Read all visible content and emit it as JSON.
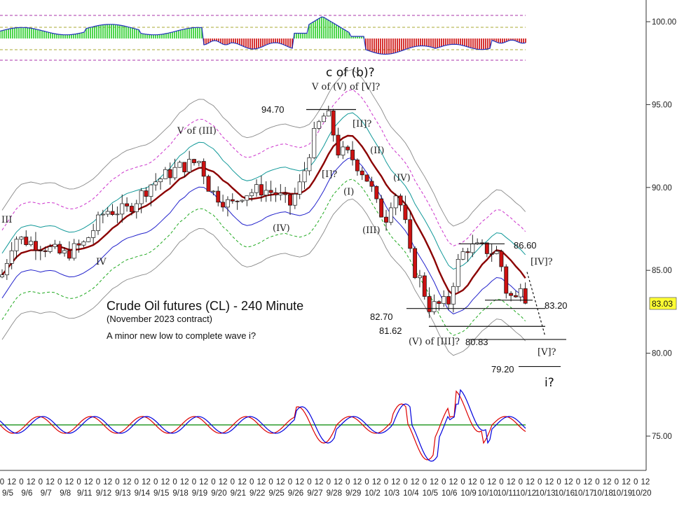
{
  "chart_data": {
    "type": "candlestick",
    "title": "Crude Oil futures (CL) - 240 Minute",
    "subtitle": "(November 2023 contract)",
    "note": "A minor new low to complete wave i?",
    "ylim": [
      73,
      101.5
    ],
    "y_ticks": [
      "100.00",
      "95.00",
      "90.00",
      "85.00",
      "80.00",
      "75.00"
    ],
    "last_price": "83.03",
    "x_row1": [
      "0",
      "12",
      "0",
      "12",
      "0",
      "12",
      "0",
      "12",
      "0",
      "12",
      "0",
      "12",
      "0",
      "12",
      "0",
      "12",
      "0",
      "12",
      "0",
      "12",
      "0",
      "12",
      "0",
      "12",
      "0",
      "12",
      "0",
      "12",
      "0",
      "12",
      "0",
      "12",
      "0",
      "12",
      "0",
      "12",
      "0",
      "12",
      "0",
      "12",
      "0",
      "12",
      "0",
      "12",
      "0",
      "12",
      "0",
      "12",
      "0",
      "12",
      "0",
      "12",
      "0",
      "12",
      "0",
      "12",
      "0",
      "12",
      "0",
      "12",
      "0",
      "12",
      "0",
      "12",
      "0",
      "12",
      "0",
      "12"
    ],
    "x_row2": [
      "9/5",
      "9/6",
      "9/7",
      "9/8",
      "9/11",
      "9/12",
      "9/13",
      "9/14",
      "9/15",
      "9/18",
      "9/19",
      "9/20",
      "9/21",
      "9/22",
      "9/25",
      "9/26",
      "9/27",
      "9/28",
      "9/29",
      "10/2",
      "10/3",
      "10/4",
      "10/5",
      "10/6",
      "10/9",
      "10/10",
      "10/11",
      "10/12",
      "10/13",
      "10/16",
      "10/17",
      "10/18",
      "10/19",
      "10/20"
    ],
    "price_levels": [
      {
        "label": "94.70",
        "value": 94.7
      },
      {
        "label": "86.60",
        "value": 86.6
      },
      {
        "label": "83.20",
        "value": 83.2
      },
      {
        "label": "82.70",
        "value": 82.7
      },
      {
        "label": "81.62",
        "value": 81.62
      },
      {
        "label": "80.83",
        "value": 80.83
      },
      {
        "label": "79.20",
        "value": 79.2
      }
    ],
    "wave_labels": [
      "III",
      "IV",
      "V of (III)",
      "(IV)",
      "c of (b)?",
      "V of (V) of [V]?",
      "[I]?",
      "[II]?",
      "(I)",
      "(II)",
      "(III)",
      "(IV)",
      "(V) of [III]?",
      "[IV]?",
      "[V]?",
      "i?"
    ],
    "colors": {
      "up_candle": "#ffffff",
      "down_candle": "#cc1111",
      "ma_main": "#8b0000",
      "band_inner": "#2222cc",
      "band_teal": "#119999",
      "band_magenta": "#cc33cc",
      "band_green": "#22aa22",
      "band_outer": "#888888",
      "osc_red": "#dd0000",
      "osc_blue": "#0000dd",
      "osc_baseline": "#008800",
      "hist_green": "#22cc22",
      "hist_red": "#cc0000",
      "last_price_bg": "#ffff33"
    }
  }
}
